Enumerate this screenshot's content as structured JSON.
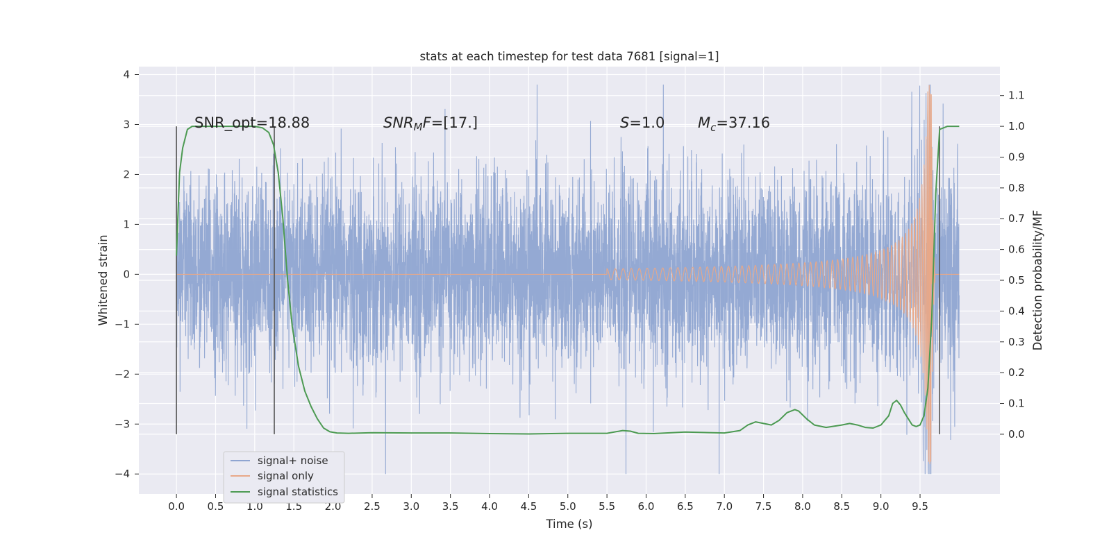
{
  "chart_data": {
    "type": "line",
    "title": "stats at each timestep for test data 7681 [signal=1]",
    "xlabel": "Time (s)",
    "ylabel": "Whitened strain",
    "y2label": "Detection probability/MF",
    "xlim": [
      -0.48,
      10.52
    ],
    "ylim": [
      -4.4,
      4.16
    ],
    "y2lim": [
      -0.194,
      1.194
    ],
    "xticks": [
      "0.0",
      "0.5",
      "1.0",
      "1.5",
      "2.0",
      "2.5",
      "3.0",
      "3.5",
      "4.0",
      "4.5",
      "5.0",
      "5.5",
      "6.0",
      "6.5",
      "7.0",
      "7.5",
      "8.0",
      "8.5",
      "9.0",
      "9.5"
    ],
    "yticks": [
      "4",
      "3",
      "2",
      "1",
      "0",
      "−1",
      "−2",
      "−3",
      "−4"
    ],
    "y2ticks": [
      "1.1",
      "1.0",
      "0.9",
      "0.8",
      "0.7",
      "0.6",
      "0.5",
      "0.4",
      "0.3",
      "0.2",
      "0.1",
      "0.0"
    ],
    "grid": true,
    "legend_position": "lower-left",
    "annotations": {
      "snr_opt": "SNR_opt=18.88",
      "snr_mf_italic": "SNR",
      "snr_mf_sub": "M",
      "snr_mf_italic2": "F",
      "snr_mf_value": "=[17.]",
      "s_italic": "S",
      "s_value": "=1.0",
      "mc_italic": "M",
      "mc_sub": "c",
      "mc_value": "=37.16"
    },
    "series": [
      {
        "name": "signal+ noise",
        "color": "#8fa5d1",
        "description_values": {
          "t_start": 0.0,
          "t_end": 10.0,
          "typical_amplitude": 1.5,
          "max": 3.8,
          "min": -4.0
        }
      },
      {
        "name": "signal only",
        "color": "#e8a888",
        "chirp": {
          "t_start": 5.5,
          "t_merger": 9.65,
          "peak": 3.5,
          "min": -4.0
        }
      },
      {
        "name": "signal statistics",
        "color": "#4c9a52",
        "axis": "right",
        "x": [
          0.0,
          0.04,
          0.08,
          0.14,
          0.2,
          0.3,
          0.5,
          0.8,
          1.0,
          1.1,
          1.18,
          1.24,
          1.3,
          1.36,
          1.42,
          1.48,
          1.56,
          1.64,
          1.72,
          1.8,
          1.88,
          1.96,
          2.05,
          2.2,
          2.5,
          3.0,
          3.5,
          4.0,
          4.5,
          5.0,
          5.5,
          5.7,
          5.8,
          5.9,
          6.1,
          6.5,
          7.0,
          7.2,
          7.3,
          7.4,
          7.5,
          7.6,
          7.7,
          7.8,
          7.9,
          7.95,
          8.05,
          8.15,
          8.3,
          8.5,
          8.6,
          8.7,
          8.8,
          8.9,
          9.0,
          9.1,
          9.15,
          9.2,
          9.25,
          9.3,
          9.35,
          9.4,
          9.45,
          9.5,
          9.55,
          9.6,
          9.65,
          9.7,
          9.75,
          9.8,
          9.85,
          9.9,
          9.95,
          10.0
        ],
        "y": [
          0.58,
          0.85,
          0.93,
          0.99,
          1.0,
          1.0,
          1.0,
          1.0,
          1.0,
          0.995,
          0.98,
          0.94,
          0.85,
          0.7,
          0.5,
          0.35,
          0.22,
          0.14,
          0.09,
          0.05,
          0.02,
          0.008,
          0.004,
          0.003,
          0.005,
          0.004,
          0.004,
          0.002,
          0.001,
          0.003,
          0.003,
          0.012,
          0.01,
          0.003,
          0.002,
          0.007,
          0.004,
          0.012,
          0.03,
          0.04,
          0.035,
          0.03,
          0.045,
          0.07,
          0.08,
          0.075,
          0.05,
          0.03,
          0.022,
          0.03,
          0.035,
          0.03,
          0.022,
          0.02,
          0.03,
          0.06,
          0.1,
          0.11,
          0.095,
          0.07,
          0.05,
          0.03,
          0.025,
          0.03,
          0.06,
          0.15,
          0.38,
          0.78,
          0.99,
          0.995,
          1.0,
          1.0,
          1.0,
          1.0
        ]
      }
    ],
    "vertical_lines": [
      0.0,
      1.25,
      9.75
    ]
  }
}
